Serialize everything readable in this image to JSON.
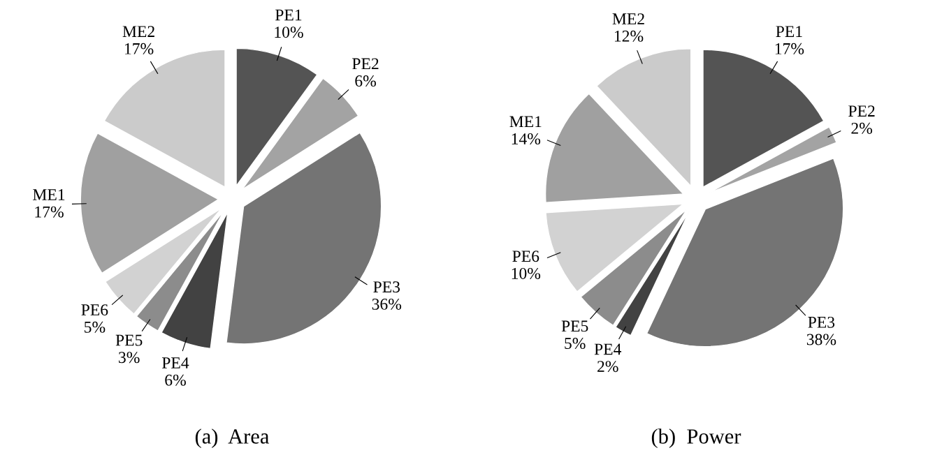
{
  "chart_data": [
    {
      "type": "pie",
      "title": "(a)  Area",
      "categories": [
        "PE1",
        "PE2",
        "PE3",
        "PE4",
        "PE5",
        "PE6",
        "ME1",
        "ME2"
      ],
      "values": [
        10,
        6,
        36,
        6,
        3,
        5,
        17,
        17
      ],
      "value_labels": [
        "10%",
        "6%",
        "36%",
        "6%",
        "3%",
        "5%",
        "17%",
        "17%"
      ],
      "colors": [
        "#545454",
        "#a3a3a3",
        "#747474",
        "#424242",
        "#8c8c8c",
        "#d2d2d2",
        "#a0a0a0",
        "#cbcbcb"
      ],
      "legend": false
    },
    {
      "type": "pie",
      "title": "(b)  Power",
      "categories": [
        "PE1",
        "PE2",
        "PE3",
        "PE4",
        "PE5",
        "PE6",
        "ME1",
        "ME2"
      ],
      "values": [
        17,
        2,
        38,
        2,
        5,
        10,
        14,
        12
      ],
      "value_labels": [
        "17%",
        "2%",
        "38%",
        "2%",
        "5%",
        "10%",
        "14%",
        "12%"
      ],
      "colors": [
        "#545454",
        "#a3a3a3",
        "#747474",
        "#424242",
        "#8c8c8c",
        "#d2d2d2",
        "#a0a0a0",
        "#cbcbcb"
      ],
      "legend": false
    }
  ]
}
